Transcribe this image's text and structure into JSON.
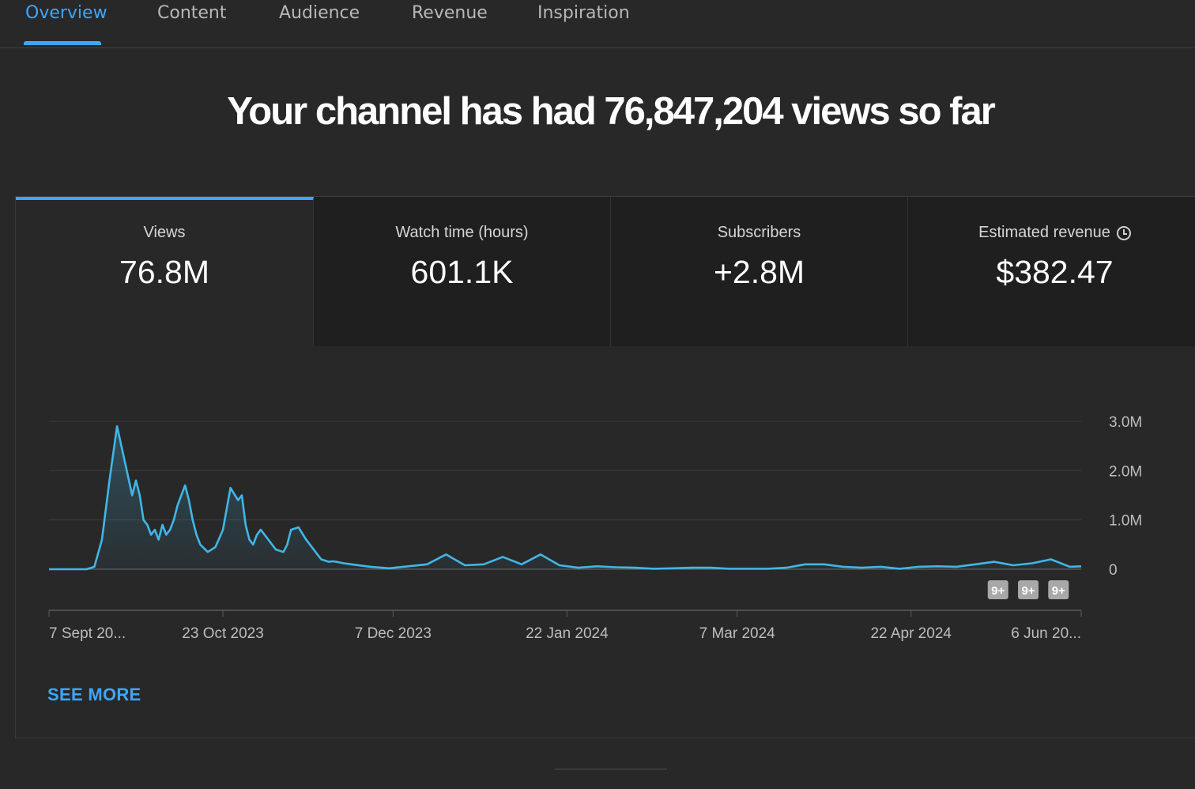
{
  "tabs": [
    {
      "label": "Overview",
      "active": true
    },
    {
      "label": "Content",
      "active": false
    },
    {
      "label": "Audience",
      "active": false
    },
    {
      "label": "Revenue",
      "active": false
    },
    {
      "label": "Inspiration",
      "active": false
    }
  ],
  "headline": "Your channel has had 76,847,204 views so far",
  "metrics": [
    {
      "label": "Views",
      "value": "76.8M"
    },
    {
      "label": "Watch time (hours)",
      "value": "601.1K"
    },
    {
      "label": "Subscribers",
      "value": "+2.8M"
    },
    {
      "label": "Estimated revenue",
      "value": "$382.47"
    }
  ],
  "see_more": "SEE MORE",
  "colors": {
    "accent": "#3ea6ff",
    "line": "#41b6e6",
    "background": "#282828"
  },
  "chart_data": {
    "type": "area",
    "ylabel": "",
    "xlabel": "",
    "ylim": [
      0,
      3000000
    ],
    "y_ticks": [
      0,
      1000000,
      2000000,
      3000000
    ],
    "y_tick_labels": [
      "0",
      "1.0M",
      "2.0M",
      "3.0M"
    ],
    "x_tick_labels": [
      "7 Sept 20...",
      "23 Oct 2023",
      "7 Dec 2023",
      "22 Jan 2024",
      "7 Mar 2024",
      "22 Apr 2024",
      "6 Jun 20..."
    ],
    "x_tick_days": [
      0,
      46,
      91,
      137,
      182,
      228,
      273
    ],
    "annotations": [
      "9+",
      "9+",
      "9+"
    ],
    "annotation_days": [
      251,
      259,
      267
    ],
    "series": [
      {
        "x": [
          0,
          5,
          10,
          12,
          14,
          16,
          18,
          20,
          22,
          23,
          24,
          25,
          26,
          27,
          28,
          29,
          30,
          31,
          32,
          33,
          34,
          35,
          36,
          37,
          38,
          39,
          40,
          42,
          44,
          46,
          48,
          50,
          51,
          52,
          53,
          54,
          55,
          56,
          58,
          60,
          62,
          63,
          64,
          66,
          68,
          70,
          72,
          74,
          75,
          76,
          78,
          80,
          85,
          90,
          95,
          100,
          105,
          110,
          115,
          120,
          125,
          130,
          135,
          140,
          145,
          150,
          155,
          160,
          165,
          170,
          175,
          180,
          185,
          190,
          195,
          200,
          205,
          210,
          215,
          220,
          225,
          230,
          235,
          240,
          245,
          250,
          255,
          260,
          265,
          270,
          273
        ],
        "y": [
          0,
          0,
          0,
          50000,
          600000,
          1800000,
          2900000,
          2200000,
          1500000,
          1800000,
          1500000,
          1000000,
          900000,
          700000,
          800000,
          600000,
          900000,
          700000,
          800000,
          1000000,
          1300000,
          1500000,
          1700000,
          1400000,
          1000000,
          700000,
          500000,
          350000,
          450000,
          800000,
          1650000,
          1400000,
          1500000,
          900000,
          600000,
          500000,
          700000,
          800000,
          600000,
          400000,
          350000,
          500000,
          800000,
          850000,
          600000,
          400000,
          200000,
          150000,
          160000,
          150000,
          120000,
          100000,
          50000,
          20000,
          60000,
          100000,
          300000,
          80000,
          100000,
          250000,
          100000,
          300000,
          80000,
          30000,
          60000,
          40000,
          30000,
          10000,
          20000,
          30000,
          30000,
          10000,
          10000,
          10000,
          30000,
          100000,
          100000,
          50000,
          30000,
          50000,
          10000,
          50000,
          60000,
          50000,
          100000,
          150000,
          80000,
          120000,
          200000,
          50000,
          60000
        ]
      }
    ]
  }
}
